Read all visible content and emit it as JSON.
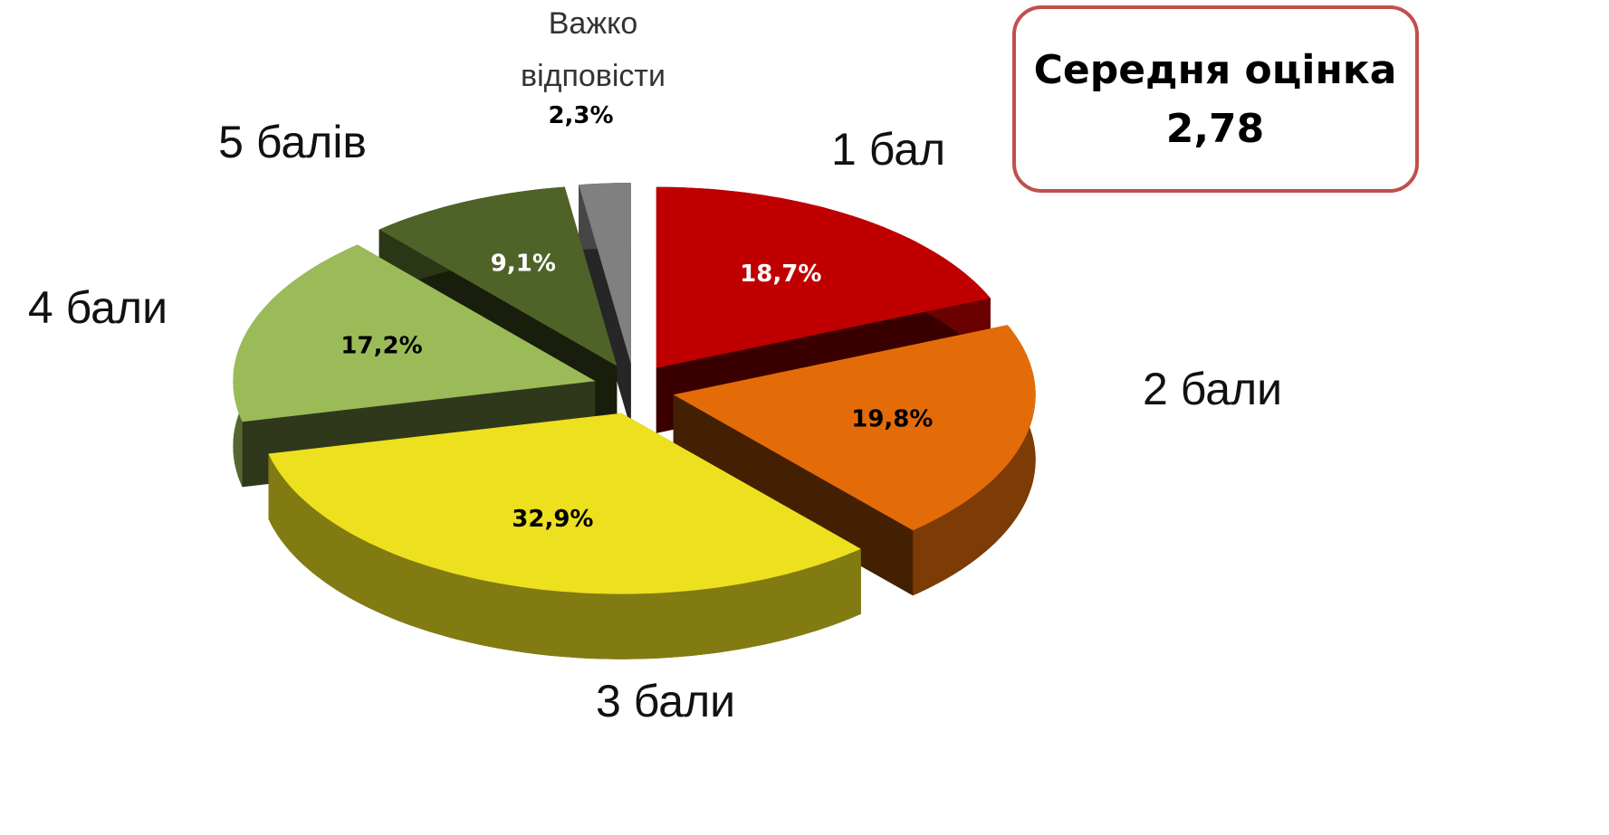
{
  "chart_data": {
    "type": "pie",
    "categories": [
      "1 бал",
      "2 бали",
      "3 бали",
      "4 бали",
      "5 балів",
      "Важко відповісти"
    ],
    "values": [
      18.7,
      19.8,
      32.9,
      17.2,
      9.1,
      2.3
    ],
    "value_labels": [
      "18,7%",
      "19,8%",
      "32,9%",
      "17,2%",
      "9,1%",
      "2,3%"
    ],
    "colors": [
      "#c00000",
      "#e36c09",
      "#ede01e",
      "#9bbb59",
      "#4f6228",
      "#808080"
    ],
    "label_colors": [
      "#ffffff",
      "#000000",
      "#000000",
      "#000000",
      "#ffffff",
      "#000000"
    ],
    "annotation": {
      "text": "Середня оцінка",
      "value_label": "2,78"
    }
  }
}
